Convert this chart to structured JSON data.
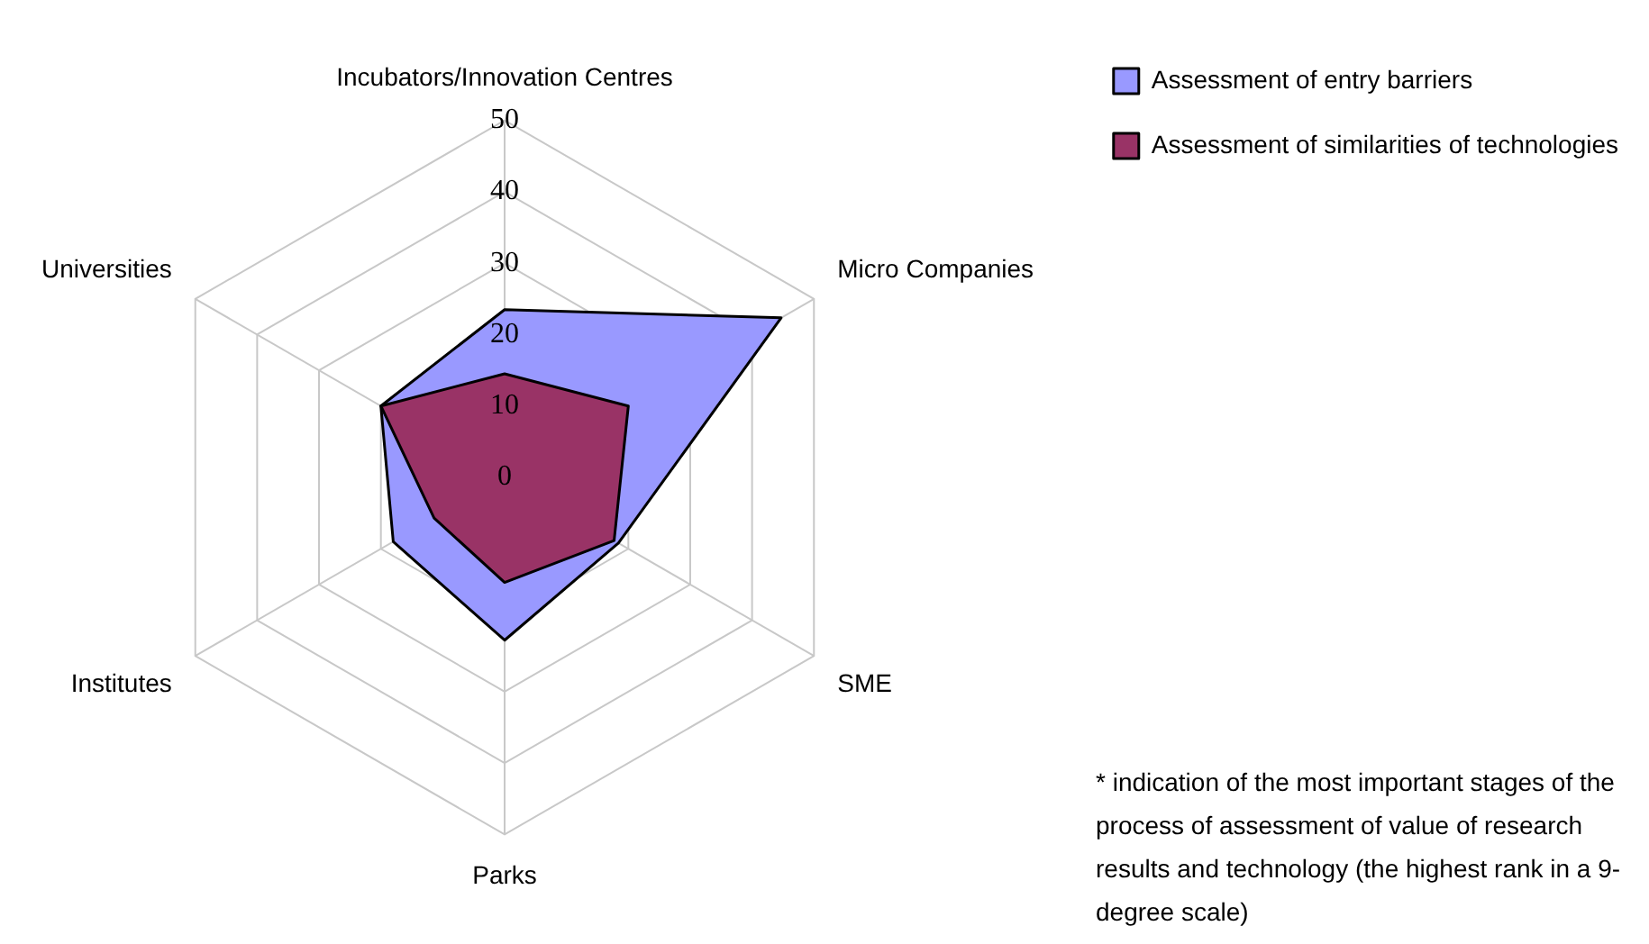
{
  "chart_data": {
    "type": "radar",
    "categories": [
      "Incubators/Innovation Centres",
      "Micro Companies",
      "SME",
      "Parks",
      "Institutes",
      "Universities"
    ],
    "series": [
      {
        "name": "Assessment of entry barriers",
        "color": "#9999ff",
        "values": [
          23.5,
          44.7,
          18.4,
          22.8,
          18,
          20
        ]
      },
      {
        "name": "Assessment of similarities of technologies",
        "color": "#993366",
        "values": [
          14.5,
          20,
          17.7,
          14.7,
          11.4,
          20
        ]
      }
    ],
    "ylim": [
      0,
      50
    ],
    "yticks": [
      0,
      10,
      20,
      30,
      40,
      50
    ],
    "grid": true,
    "legend": "top right",
    "marker": "none",
    "annotations": [
      "* indication of the most important stages of the process of assessment of value of research results and technology (the highest rank in a 9-degree scale)"
    ]
  }
}
